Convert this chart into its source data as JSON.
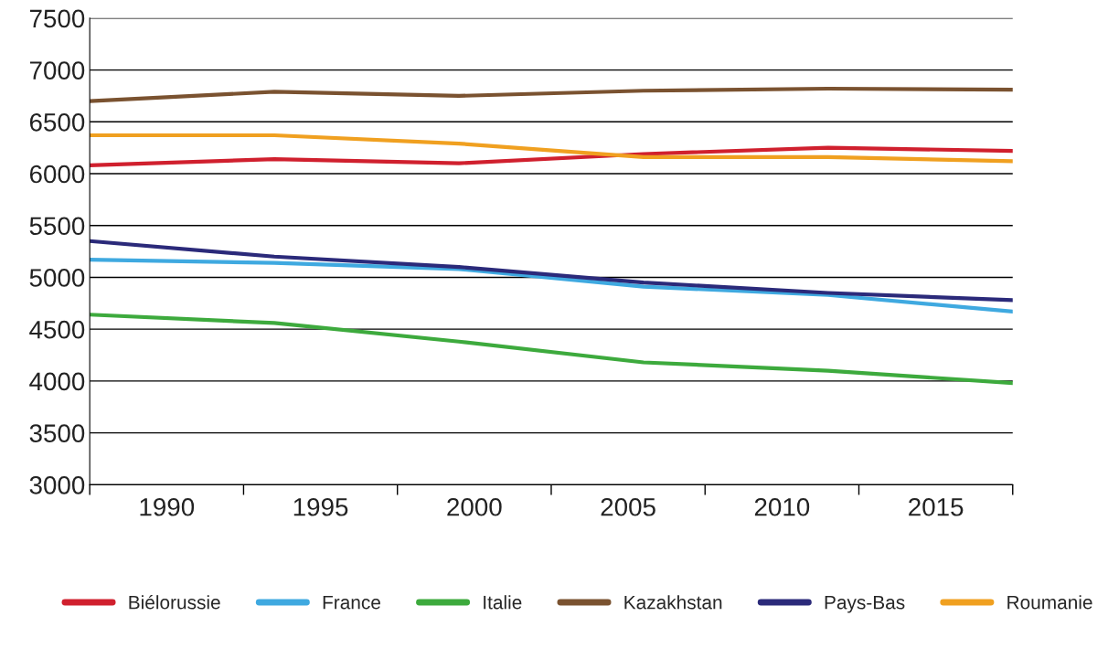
{
  "chart_data": {
    "type": "line",
    "x": [
      1987.5,
      1993.5,
      1999.5,
      2005.5,
      2011.5,
      2017.5
    ],
    "series": [
      {
        "name": "Biélorussie",
        "color": "#d0202e",
        "values": [
          6080,
          6140,
          6100,
          6190,
          6250,
          6220
        ]
      },
      {
        "name": "France",
        "color": "#3fa9e0",
        "values": [
          5170,
          5140,
          5080,
          4910,
          4830,
          4670
        ]
      },
      {
        "name": "Italie",
        "color": "#3daa3d",
        "values": [
          4640,
          4560,
          4380,
          4180,
          4100,
          3980
        ]
      },
      {
        "name": "Kazakhstan",
        "color": "#7a5230",
        "values": [
          6700,
          6790,
          6750,
          6800,
          6820,
          6810
        ]
      },
      {
        "name": "Pays-Bas",
        "color": "#2b2a7a",
        "values": [
          5350,
          5200,
          5100,
          4950,
          4850,
          4780
        ]
      },
      {
        "name": "Roumanie",
        "color": "#f0a020",
        "values": [
          6370,
          6370,
          6290,
          6160,
          6160,
          6120
        ]
      }
    ],
    "xlim": [
      1987.5,
      2017.5
    ],
    "xticks": [
      {
        "value": 1987.5,
        "label": null
      },
      1990,
      {
        "value": 1992.5,
        "label": null
      },
      1995,
      {
        "value": 1997.5,
        "label": null
      },
      2000,
      {
        "value": 2002.5,
        "label": null
      },
      2005,
      {
        "value": 2007.5,
        "label": null
      },
      2010,
      {
        "value": 2012.5,
        "label": null
      },
      2015,
      {
        "value": 2017.5,
        "label": null
      }
    ],
    "ylim": [
      3000,
      7500
    ],
    "yticks": [
      3000,
      3500,
      4000,
      4500,
      5000,
      5500,
      6000,
      6500,
      7000,
      7500
    ],
    "grid": "y",
    "legend": "bottom",
    "marker": "none",
    "line_style": "solid"
  }
}
